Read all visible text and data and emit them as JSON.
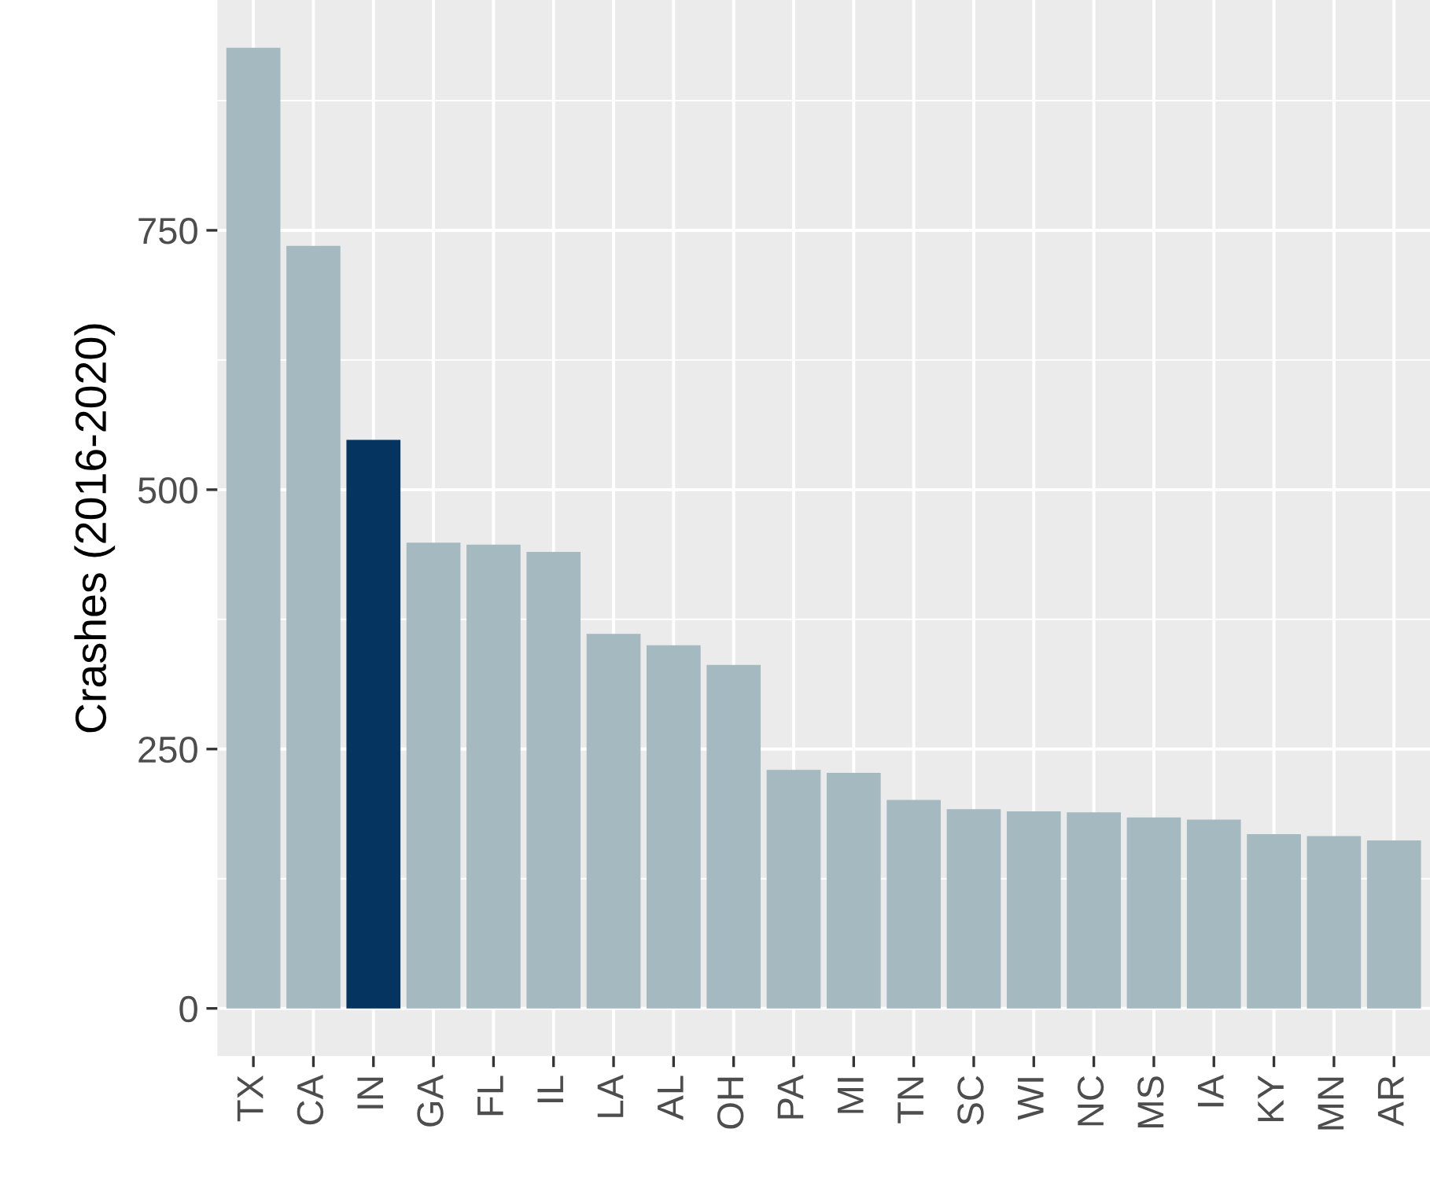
{
  "chart_data": {
    "type": "bar",
    "ylabel": "Crashes (2016-2020)",
    "categories": [
      "TX",
      "CA",
      "IN",
      "GA",
      "FL",
      "IL",
      "LA",
      "AL",
      "OH",
      "PA",
      "MI",
      "TN",
      "SC",
      "WI",
      "NC",
      "MS",
      "IA",
      "KY",
      "MN",
      "AR"
    ],
    "values": [
      926,
      735,
      548,
      449,
      447,
      440,
      361,
      350,
      331,
      230,
      227,
      201,
      192,
      190,
      189,
      184,
      182,
      168,
      166,
      162
    ],
    "colors": [
      "#a5b9c1",
      "#a5b9c1",
      "#053461",
      "#a5b9c1",
      "#a5b9c1",
      "#a5b9c1",
      "#a5b9c1",
      "#a5b9c1",
      "#a5b9c1",
      "#a5b9c1",
      "#a5b9c1",
      "#a5b9c1",
      "#a5b9c1",
      "#a5b9c1",
      "#a5b9c1",
      "#a5b9c1",
      "#a5b9c1",
      "#a5b9c1",
      "#a5b9c1",
      "#a5b9c1"
    ],
    "ylim": [
      -46,
      972
    ],
    "yticks": [
      0,
      250,
      500,
      750
    ],
    "grid": true
  }
}
